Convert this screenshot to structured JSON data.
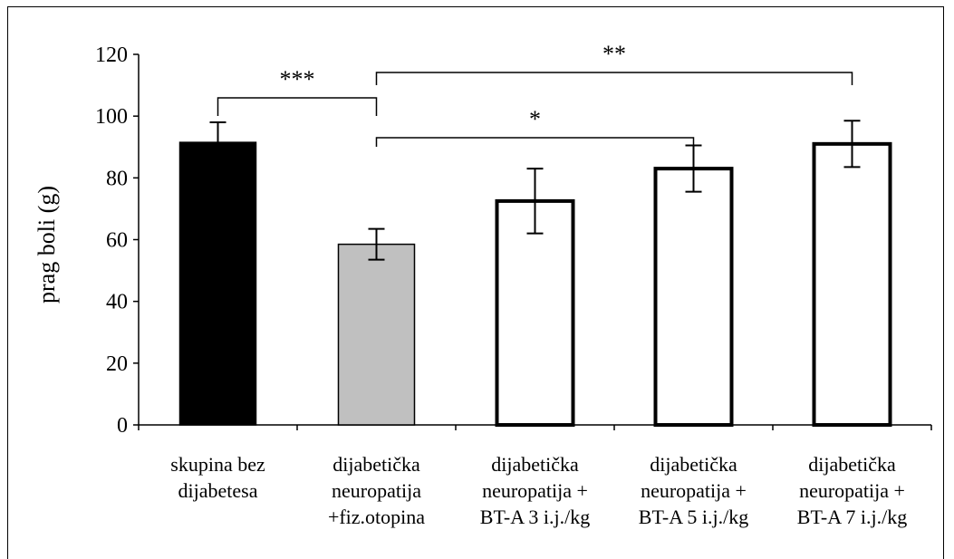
{
  "chart_data": {
    "type": "bar",
    "ylabel": "prag boli (g)",
    "ylim": [
      0,
      120
    ],
    "yticks": [
      0,
      20,
      40,
      60,
      80,
      100,
      120
    ],
    "grid": false,
    "legend": "none",
    "categories": [
      [
        "skupina bez",
        "dijabetesa"
      ],
      [
        "dijabetička",
        "neuropatija",
        "+fiz.otopina"
      ],
      [
        "dijabetička",
        "neuropatija +",
        "BT-A 3 i.j./kg"
      ],
      [
        "dijabetička",
        "neuropatija +",
        "BT-A 5 i.j./kg"
      ],
      [
        "dijabetička",
        "neuropatija +",
        "BT-A 7 i.j./kg"
      ]
    ],
    "values": [
      91.5,
      58.5,
      72.5,
      83,
      91
    ],
    "errors": [
      6.5,
      5,
      10.5,
      7.5,
      7.5
    ],
    "colors": [
      "#000000",
      "#c0c0c0",
      "#ffffff",
      "#ffffff",
      "#ffffff"
    ],
    "significance": [
      {
        "from": 0,
        "to": 1,
        "label": "***"
      },
      {
        "from": 1,
        "to": 4,
        "label": "**"
      },
      {
        "from": 1,
        "to": 3,
        "label": "*"
      }
    ]
  }
}
